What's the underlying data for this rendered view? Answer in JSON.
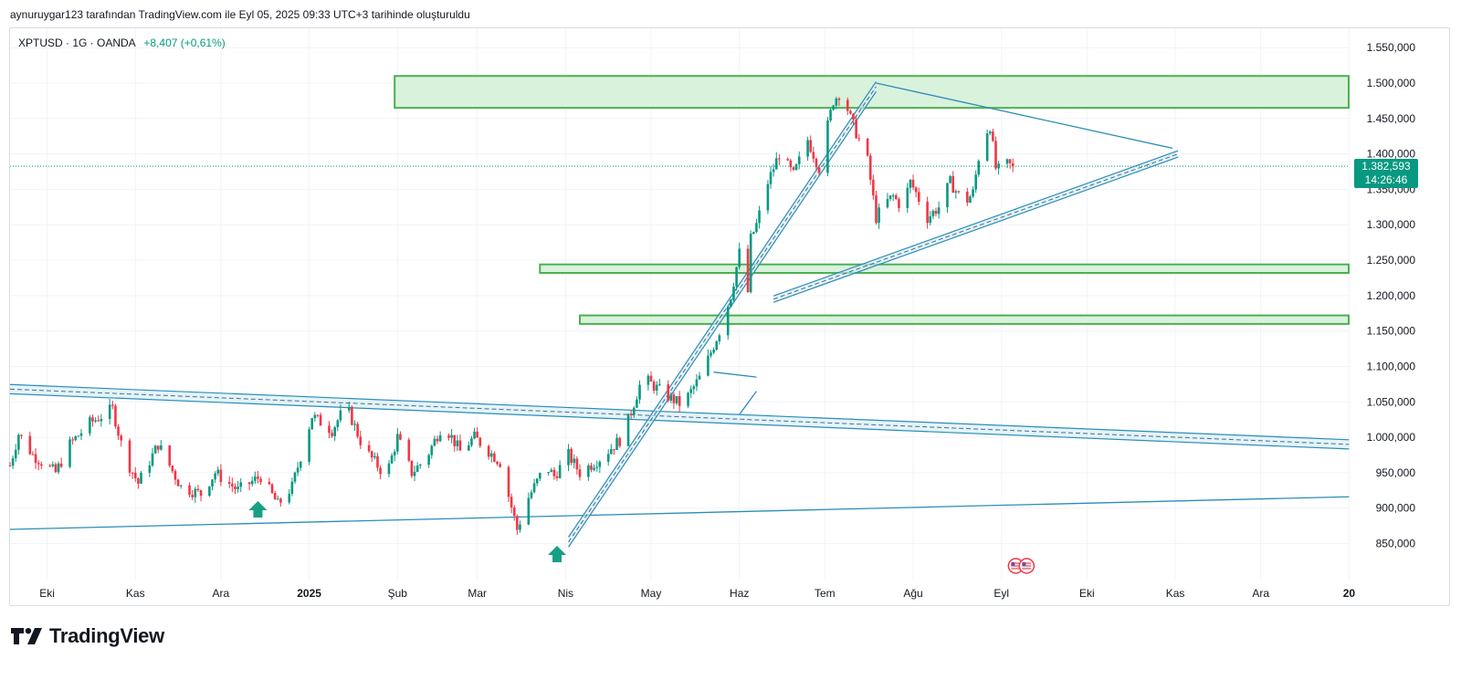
{
  "caption": "aynuruygar123 tarafından TradingView.com ile Eyl 05, 2025 09:33 UTC+3 tarihinde oluşturuldu",
  "legend": {
    "symbol": "XPTUSD · 1G · OANDA",
    "change": "+8,407 (+0,61%)"
  },
  "brand": "TradingView",
  "colors": {
    "up": "#089981",
    "down": "#f23645",
    "zone_fill": "#d9f2dc",
    "zone_stroke": "#4caf50",
    "trendline": "#2b8cb8",
    "channel_fill": "#d2ecf6"
  },
  "price_tag": {
    "price": "1.382,593",
    "countdown": "14:26:46"
  },
  "chart_data": {
    "type": "candlestick",
    "symbol": "XPTUSD",
    "interval": "1D",
    "y_axis": {
      "min": 820000,
      "max": 1570000,
      "ticks": [
        "850,000",
        "900,000",
        "950,000",
        "1.000,000",
        "1.050,000",
        "1.100,000",
        "1.150,000",
        "1.200,000",
        "1.250,000",
        "1.300,000",
        "1.350,000",
        "1.400,000",
        "1.450,000",
        "1.500,000",
        "1.550,000"
      ],
      "tick_values": [
        850000,
        900000,
        950000,
        1000000,
        1050000,
        1100000,
        1150000,
        1200000,
        1250000,
        1300000,
        1350000,
        1400000,
        1450000,
        1500000,
        1550000
      ]
    },
    "x_axis": {
      "labels": [
        "Eki",
        "Kas",
        "Ara",
        "2025",
        "Şub",
        "Mar",
        "Nis",
        "May",
        "Haz",
        "Tem",
        "Ağu",
        "Eyl",
        "Eki",
        "Kas",
        "Ara",
        "20"
      ],
      "label_days": [
        13,
        44,
        74,
        105,
        136,
        164,
        195,
        225,
        256,
        286,
        317,
        348,
        378,
        409,
        439,
        470
      ]
    },
    "last_price": 1382593,
    "price_path_days": [
      0,
      3,
      8,
      16,
      21,
      28,
      36,
      40,
      45,
      52,
      60,
      67,
      72,
      80,
      88,
      94,
      99,
      106,
      113,
      118,
      124,
      132,
      136,
      141,
      146,
      152,
      158,
      163,
      172,
      178,
      182,
      188,
      191,
      196,
      200,
      207,
      215,
      222,
      230,
      236,
      243,
      249,
      253,
      256,
      259,
      260,
      262,
      266,
      270,
      275,
      280,
      284,
      287,
      289,
      292,
      295,
      298,
      301,
      304,
      307,
      310,
      313,
      316,
      318,
      322,
      326,
      330,
      335,
      338,
      341,
      344,
      346,
      348,
      350,
      352
    ],
    "price_path_values": [
      960000,
      1005000,
      975000,
      950000,
      990000,
      1020000,
      1040000,
      975000,
      935000,
      990000,
      930000,
      920000,
      950000,
      925000,
      945000,
      905000,
      930000,
      1030000,
      1010000,
      1045000,
      985000,
      945000,
      1000000,
      950000,
      970000,
      1020000,
      980000,
      1000000,
      965000,
      870000,
      915000,
      960000,
      945000,
      975000,
      950000,
      970000,
      1000000,
      1085000,
      1060000,
      1045000,
      1090000,
      1150000,
      1200000,
      1260000,
      1205000,
      1280000,
      1300000,
      1360000,
      1400000,
      1370000,
      1420000,
      1380000,
      1440000,
      1475000,
      1490000,
      1450000,
      1420000,
      1390000,
      1310000,
      1330000,
      1340000,
      1325000,
      1360000,
      1345000,
      1310000,
      1325000,
      1360000,
      1330000,
      1345000,
      1420000,
      1440000,
      1380000,
      1375000,
      1385000,
      1382593
    ],
    "zones": [
      {
        "from_day": 135,
        "y_low": 1465000,
        "y_high": 1510000
      },
      {
        "from_day": 186,
        "y_low": 1232000,
        "y_high": 1244000
      },
      {
        "from_day": 200,
        "y_low": 1160000,
        "y_high": 1172000
      }
    ],
    "trendlines": [
      {
        "kind": "channel",
        "x": [
          0,
          470
        ],
        "y": [
          1068000,
          990000
        ],
        "width": 13000
      },
      {
        "kind": "line",
        "x": [
          0,
          470
        ],
        "y": [
          870000,
          916000
        ]
      },
      {
        "kind": "channel",
        "x": [
          196,
          304
        ],
        "y": [
          852000,
          1495000
        ],
        "width": 14000
      },
      {
        "kind": "line",
        "x": [
          304,
          408
        ],
        "y": [
          1500000,
          1408000
        ]
      },
      {
        "kind": "channel",
        "x": [
          268,
          410
        ],
        "y": [
          1195000,
          1400000
        ],
        "width": 9000
      },
      {
        "kind": "line",
        "x": [
          247,
          262
        ],
        "y": [
          1092000,
          1085000
        ]
      },
      {
        "kind": "line",
        "x": [
          256,
          262
        ],
        "y": [
          1032000,
          1065000
        ]
      }
    ],
    "arrows_up": [
      {
        "day": 87,
        "price": 915000
      },
      {
        "day": 192,
        "price": 852000
      }
    ],
    "events_day": 353
  }
}
